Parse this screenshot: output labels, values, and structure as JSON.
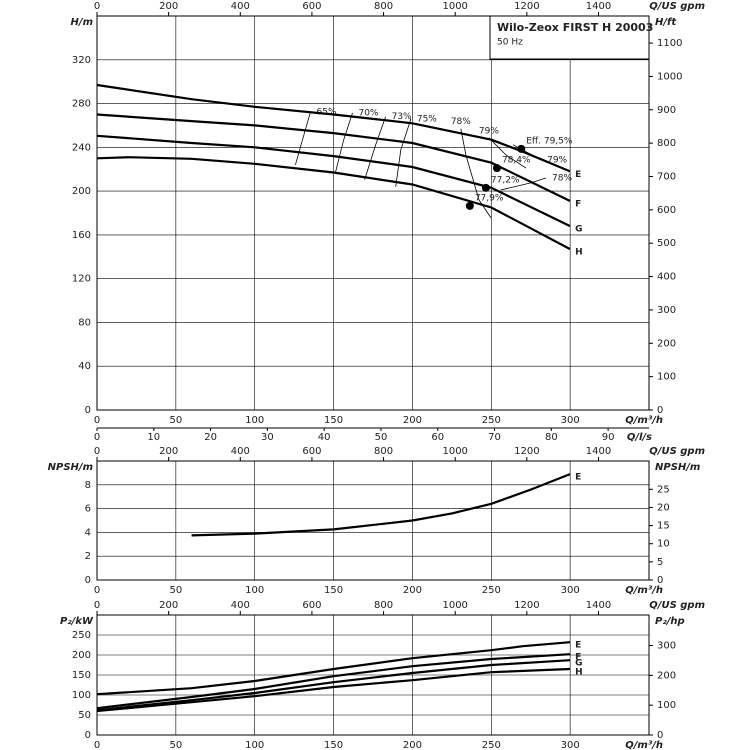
{
  "chart_data": [
    {
      "type": "line",
      "title": "Wilo-Zeox FIRST H 20003",
      "subtitle": "50 Hz",
      "grid": true,
      "xlabel": "Q/m³/h",
      "xlim": [
        0,
        350
      ],
      "xticks": [
        0,
        50,
        100,
        150,
        200,
        250,
        300
      ],
      "x2label": "Q/US gpm",
      "x2lim": [
        0,
        1541
      ],
      "x2ticks": [
        0,
        200,
        400,
        600,
        800,
        1000,
        1200,
        1400
      ],
      "x3label": "Q/l/s",
      "x3lim": [
        0,
        97.2
      ],
      "x3ticks": [
        0,
        10,
        20,
        30,
        40,
        50,
        60,
        70,
        80,
        90
      ],
      "ylabel": "H/m",
      "ylim": [
        0,
        360
      ],
      "yticks": [
        0,
        40,
        80,
        120,
        160,
        200,
        240,
        280,
        320
      ],
      "y2label": "H/ft",
      "y2lim": [
        0,
        1181.1
      ],
      "y2ticks": [
        0,
        100,
        200,
        300,
        400,
        500,
        600,
        700,
        800,
        900,
        1000,
        1100
      ],
      "series": [
        {
          "name": "E",
          "color": "#000000",
          "x": [
            0,
            60,
            100,
            150,
            200,
            250,
            270,
            300
          ],
          "values": [
            297,
            284,
            277,
            270,
            262,
            247,
            236,
            218
          ]
        },
        {
          "name": "F",
          "color": "#000000",
          "x": [
            0,
            60,
            100,
            150,
            200,
            250,
            300
          ],
          "values": [
            270,
            264,
            260,
            253,
            244,
            226,
            191
          ]
        },
        {
          "name": "G",
          "color": "#000000",
          "x": [
            0,
            60,
            100,
            150,
            200,
            250,
            300
          ],
          "values": [
            250.5,
            244,
            240,
            232,
            222,
            203,
            168
          ]
        },
        {
          "name": "H",
          "color": "#000000",
          "x": [
            0,
            20,
            60,
            100,
            150,
            200,
            250,
            300
          ],
          "values": [
            230,
            231,
            229.5,
            225,
            217,
            206,
            185,
            147
          ]
        }
      ],
      "efficiency_lines": [
        {
          "label": "65%",
          "x": [
            135.4,
            130.3,
            125.8
          ],
          "values": [
            272.5,
            246.9,
            224
          ]
        },
        {
          "label": "70%",
          "x": [
            162,
            156.4,
            151.3
          ],
          "values": [
            271.5,
            246.9,
            217.6
          ]
        },
        {
          "label": "73%",
          "x": [
            183,
            176.7,
            169.7
          ],
          "values": [
            268,
            242.3,
            210.3
          ]
        },
        {
          "label": "75%",
          "x": [
            199,
            192.6,
            189.4
          ],
          "values": [
            266,
            237.7,
            203.9
          ]
        },
        {
          "label": "78%",
          "x": [
            230.7,
            233.9,
            242.2,
            249.8
          ],
          "values": [
            257,
            233,
            192,
            175.5
          ]
        },
        {
          "label": "79%",
          "x": [
            248.5,
            259.3,
            272
          ],
          "values": [
            248.7,
            233,
            221
          ]
        },
        {
          "label": "79%",
          "x": [
            281.6,
            263.8
          ],
          "values": [
            228.6,
            242.3
          ]
        },
        {
          "label": "78%",
          "x": [
            284.7,
            275,
            256
          ],
          "values": [
            212,
            207.5,
            201
          ]
        }
      ],
      "bep": {
        "x": [
          269,
          253.6,
          246.6,
          236.4
        ],
        "values": [
          238.6,
          221,
          203,
          186.5
        ],
        "labels": [
          "Eff. 79,5%",
          "78,4%",
          "77,2%",
          "77,9%"
        ]
      }
    },
    {
      "type": "line",
      "grid": true,
      "xlabel": "Q/m³/h",
      "xlim": [
        0,
        350
      ],
      "xticks": [
        0,
        50,
        100,
        150,
        200,
        250,
        300
      ],
      "x2label": "Q/US gpm",
      "x2lim": [
        0,
        1541
      ],
      "x2ticks": [
        0,
        200,
        400,
        600,
        800,
        1000,
        1200,
        1400
      ],
      "ylabel": "NPSH/m",
      "ylim": [
        0,
        10
      ],
      "yticks": [
        0,
        2,
        4,
        6,
        8
      ],
      "y2label": "NPSH/m",
      "y2lim": [
        0,
        32.8
      ],
      "y2ticks": [
        0,
        5,
        10,
        15,
        20,
        25
      ],
      "series": [
        {
          "name": "E",
          "color": "#000000",
          "x": [
            60,
            100,
            150,
            200,
            225,
            250,
            275,
            300
          ],
          "values": [
            3.75,
            3.9,
            4.25,
            5.0,
            5.6,
            6.4,
            7.6,
            8.9
          ]
        }
      ]
    },
    {
      "type": "line",
      "grid": true,
      "xlabel": "Q/m³/h",
      "xlim": [
        0,
        350
      ],
      "xticks": [
        0,
        50,
        100,
        150,
        200,
        250,
        300
      ],
      "x2label": "Q/US gpm",
      "x2lim": [
        0,
        1541
      ],
      "x2ticks": [
        0,
        200,
        400,
        600,
        800,
        1000,
        1200,
        1400
      ],
      "ylabel": "P₂/kW",
      "ylim": [
        0,
        300
      ],
      "yticks": [
        0,
        50,
        100,
        150,
        200,
        250
      ],
      "y2label": "P₂/hp",
      "y2lim": [
        0,
        402.3
      ],
      "y2ticks": [
        0,
        100,
        200,
        300
      ],
      "series": [
        {
          "name": "E",
          "color": "#000000",
          "x": [
            0,
            60,
            100,
            150,
            200,
            250,
            270,
            300
          ],
          "values": [
            102,
            117,
            135,
            165,
            192,
            212,
            222,
            232
          ]
        },
        {
          "name": "F",
          "color": "#000000",
          "x": [
            0,
            60,
            100,
            150,
            200,
            250,
            300
          ],
          "values": [
            67,
            95,
            115,
            147,
            172,
            190,
            202
          ]
        },
        {
          "name": "G",
          "color": "#000000",
          "x": [
            0,
            60,
            100,
            150,
            200,
            250,
            300
          ],
          "values": [
            62,
            87,
            105,
            132,
            155,
            175,
            187
          ]
        },
        {
          "name": "H",
          "color": "#000000",
          "x": [
            0,
            60,
            100,
            150,
            200,
            250,
            300
          ],
          "values": [
            60,
            82,
            97,
            120,
            137,
            157,
            165
          ]
        }
      ]
    }
  ]
}
